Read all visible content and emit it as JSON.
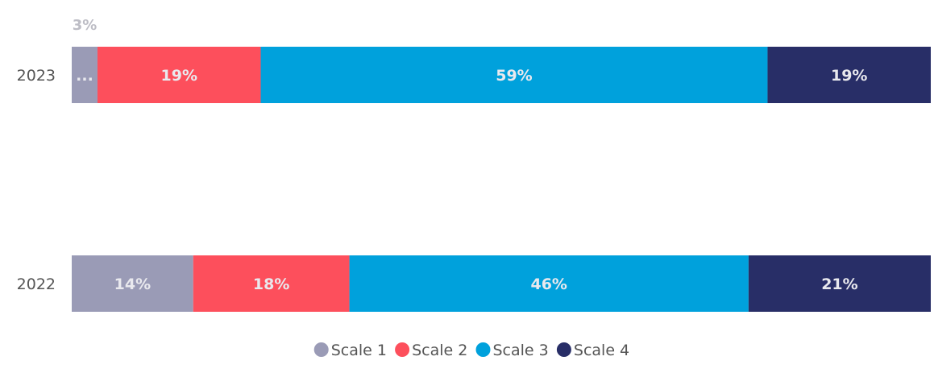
{
  "chart_data": {
    "type": "bar",
    "orientation": "horizontal",
    "stacked": true,
    "normalized_percent": true,
    "categories": [
      "2023",
      "2022"
    ],
    "series": [
      {
        "name": "Scale 1",
        "color": "#9a9bb6",
        "values": [
          3,
          14
        ],
        "labels": [
          "...",
          "14%"
        ]
      },
      {
        "name": "Scale 2",
        "color": "#fd4f5c",
        "values": [
          19,
          18
        ],
        "labels": [
          "19%",
          "18%"
        ]
      },
      {
        "name": "Scale 3",
        "color": "#00a1dc",
        "values": [
          59,
          46
        ],
        "labels": [
          "59%",
          "46%"
        ]
      },
      {
        "name": "Scale 4",
        "color": "#282e67",
        "values": [
          19,
          21
        ],
        "labels": [
          "19%",
          "21%"
        ]
      }
    ],
    "outside_labels": [
      {
        "category": "2023",
        "series": "Scale 1",
        "text": "3%"
      }
    ],
    "legend": {
      "position": "bottom-center"
    },
    "grid": false,
    "xlim": [
      0,
      100
    ]
  }
}
